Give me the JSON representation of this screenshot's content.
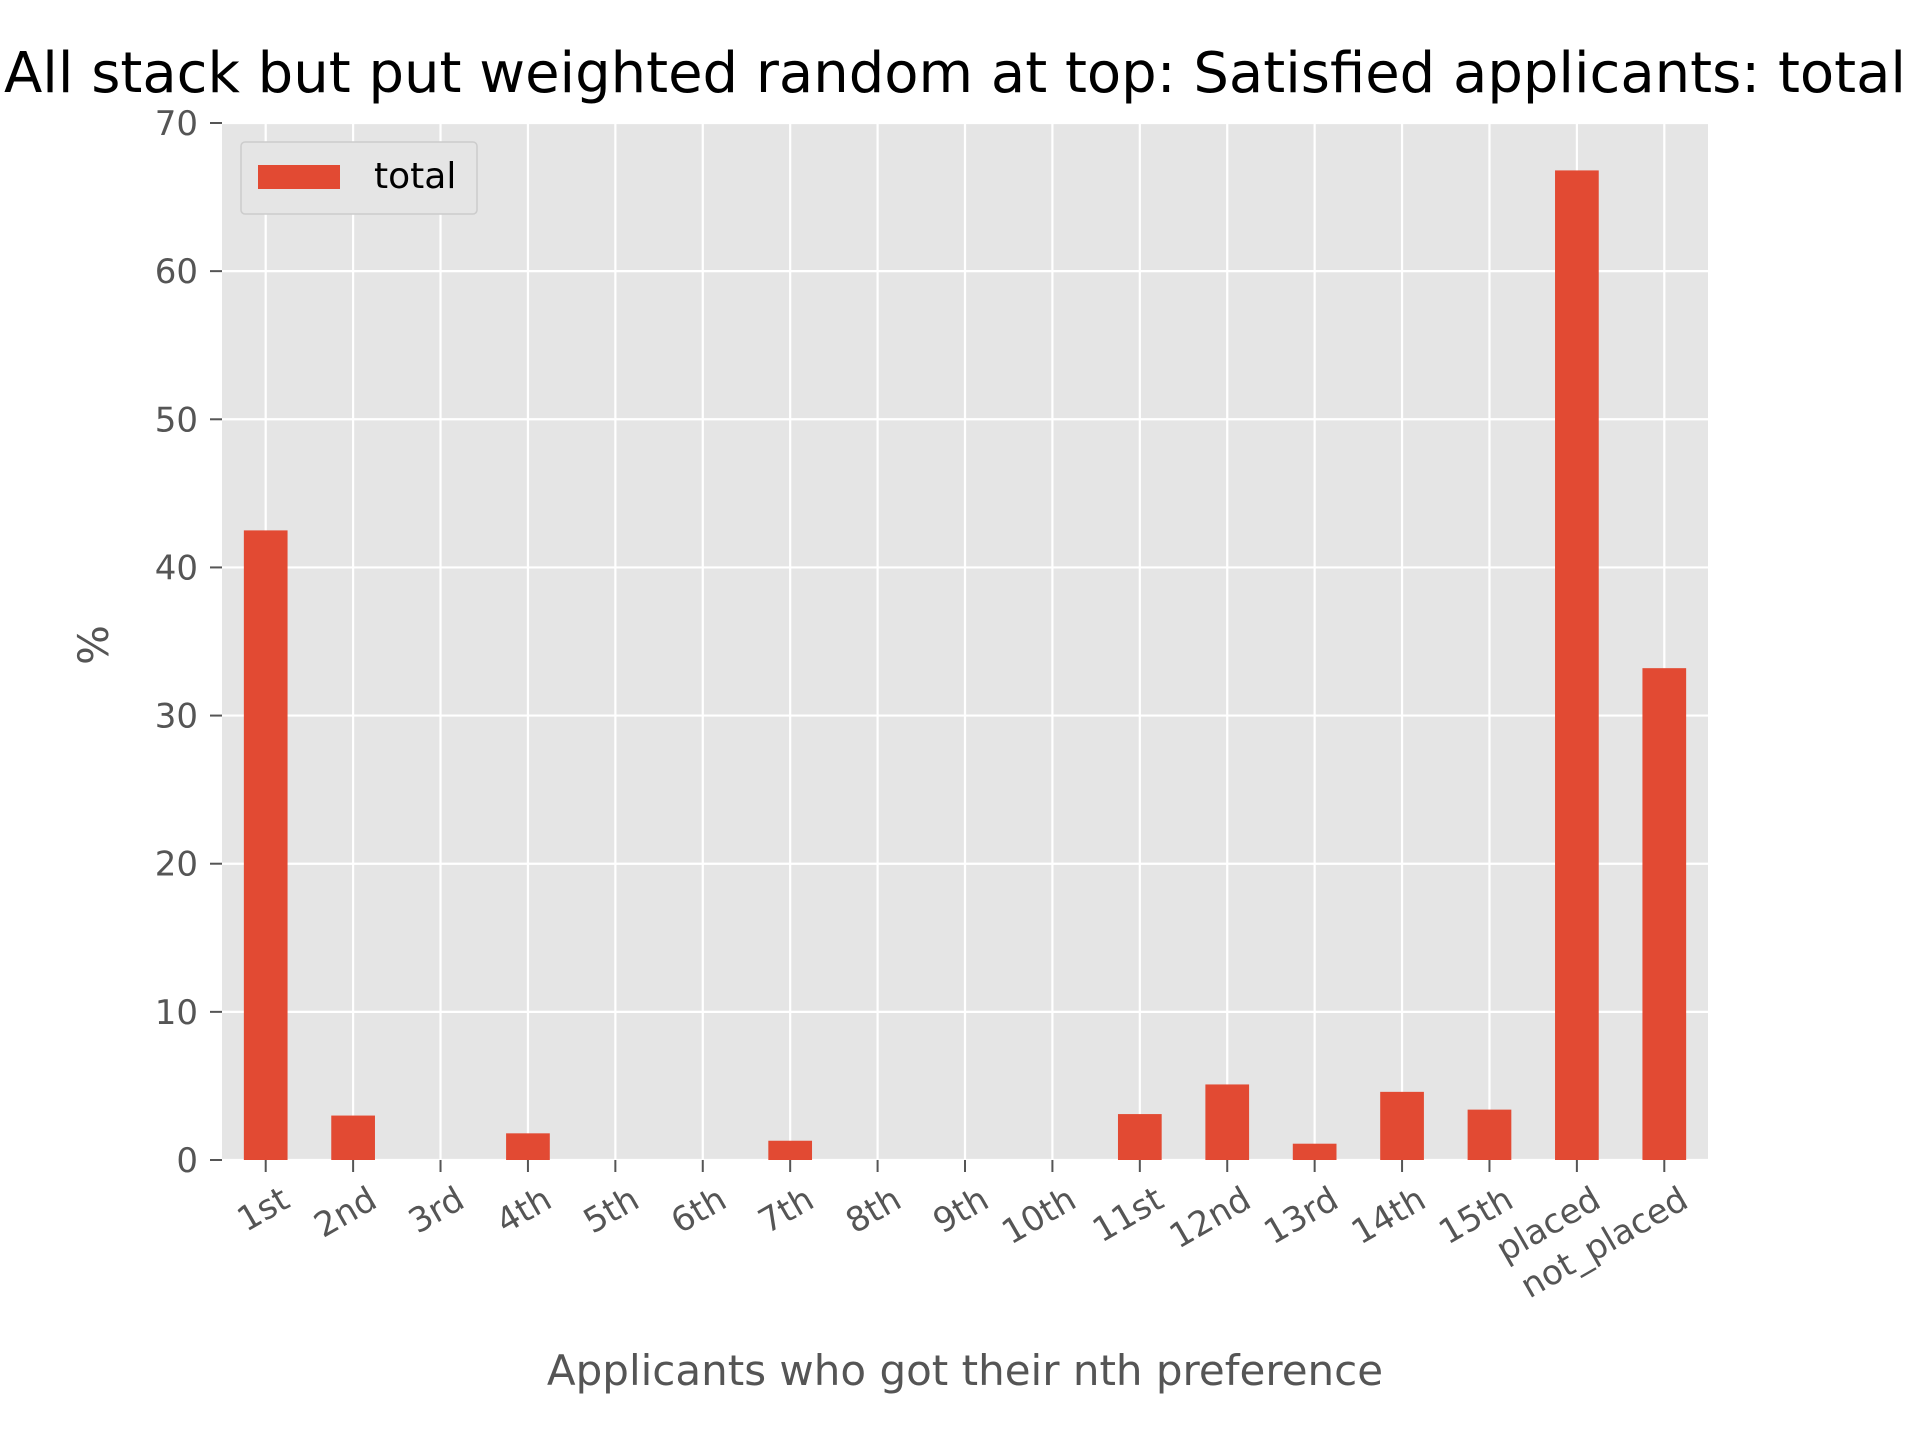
{
  "colors": {
    "bar": "#E24A33",
    "plot_background": "#E5E5E5",
    "grid": "#FFFFFF",
    "tick": "#555555",
    "text": "#555555"
  },
  "chart_data": {
    "type": "bar",
    "title": "All stack but put weighted random at top: Satisfied applicants: total",
    "xlabel": "Applicants who got their nth preference",
    "ylabel": "%",
    "ylim": [
      0,
      70
    ],
    "yticks": [
      0,
      10,
      20,
      30,
      40,
      50,
      60,
      70
    ],
    "yticklabels": [
      "0",
      "10",
      "20",
      "30",
      "40",
      "50",
      "60",
      "70"
    ],
    "grid": true,
    "legend_position": "top-left",
    "categories": [
      "1st",
      "2nd",
      "3rd",
      "4th",
      "5th",
      "6th",
      "7th",
      "8th",
      "9th",
      "10th",
      "11st",
      "12nd",
      "13rd",
      "14th",
      "15th",
      "placed",
      "not_placed"
    ],
    "series": [
      {
        "name": "total",
        "values": [
          42.5,
          3.0,
          0,
          1.8,
          0,
          0,
          1.3,
          0,
          0,
          0,
          3.1,
          5.1,
          1.1,
          4.6,
          3.4,
          66.8,
          33.2
        ]
      }
    ]
  }
}
